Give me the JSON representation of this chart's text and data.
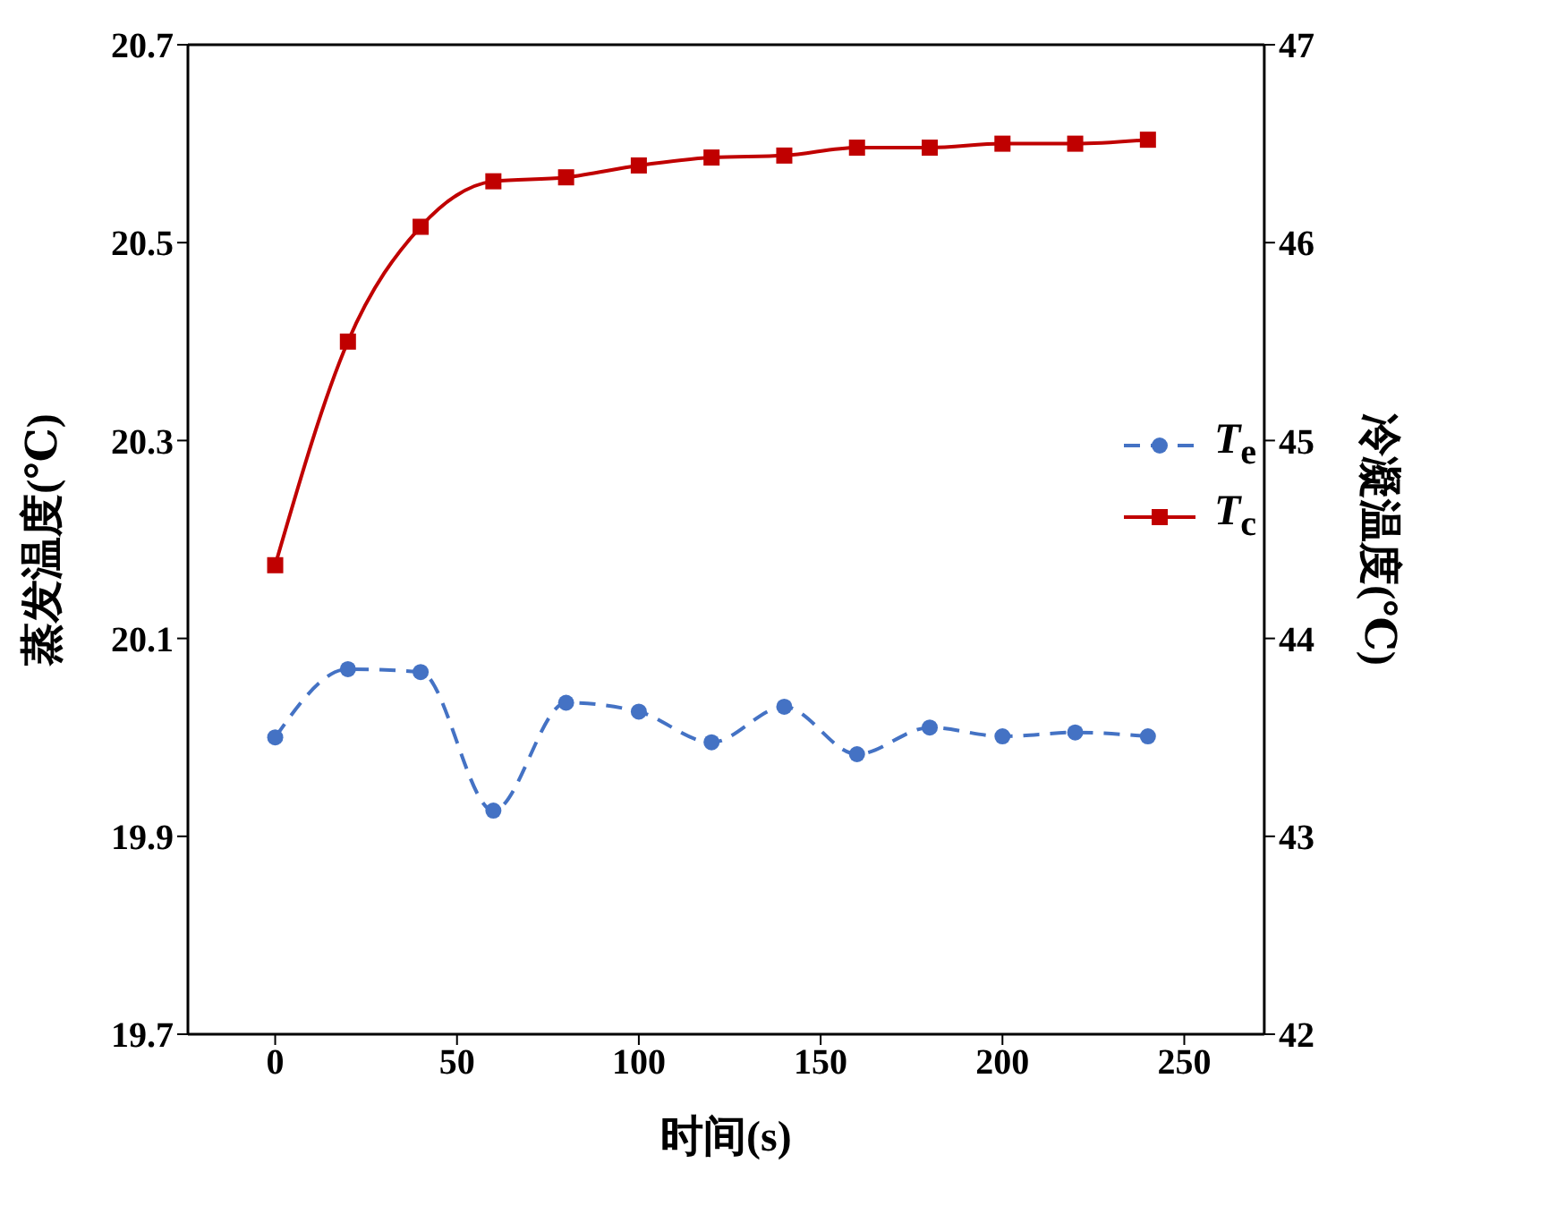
{
  "chart_data": {
    "type": "line",
    "xlabel": "时间(s)",
    "ylabel": "蒸发温度(℃)",
    "y2label": "冷凝温度(℃)",
    "x": [
      0,
      20,
      40,
      60,
      80,
      100,
      120,
      140,
      160,
      180,
      200,
      220,
      240
    ],
    "series": [
      {
        "name": "T$_{e}$",
        "color": "#4472c4",
        "line_style": "dashed",
        "marker": "circle",
        "values": [
          20.0,
          20.069,
          20.066,
          19.926,
          20.035,
          20.026,
          19.995,
          20.031,
          19.983,
          20.01,
          20.001,
          20.005,
          20.001
        ]
      },
      {
        "name": "T$_{c}$",
        "color": "#c00000",
        "line_style": "solid",
        "marker": "square",
        "axis": "y2",
        "values": [
          44.37,
          45.5,
          46.08,
          46.31,
          46.33,
          46.39,
          46.43,
          46.44,
          46.48,
          46.48,
          46.5,
          46.5,
          46.52
        ]
      }
    ],
    "xlim": [
      -24,
      272
    ],
    "xticks": [
      0,
      50,
      100,
      150,
      200,
      250
    ],
    "ylim": [
      19.7,
      20.7
    ],
    "yticks": [
      19.7,
      19.9,
      20.1,
      20.3,
      20.5,
      20.7
    ],
    "y2lim": [
      42,
      47
    ],
    "y2ticks": [
      42,
      43,
      44,
      45,
      46,
      47
    ],
    "grid": false,
    "legend": "right"
  }
}
